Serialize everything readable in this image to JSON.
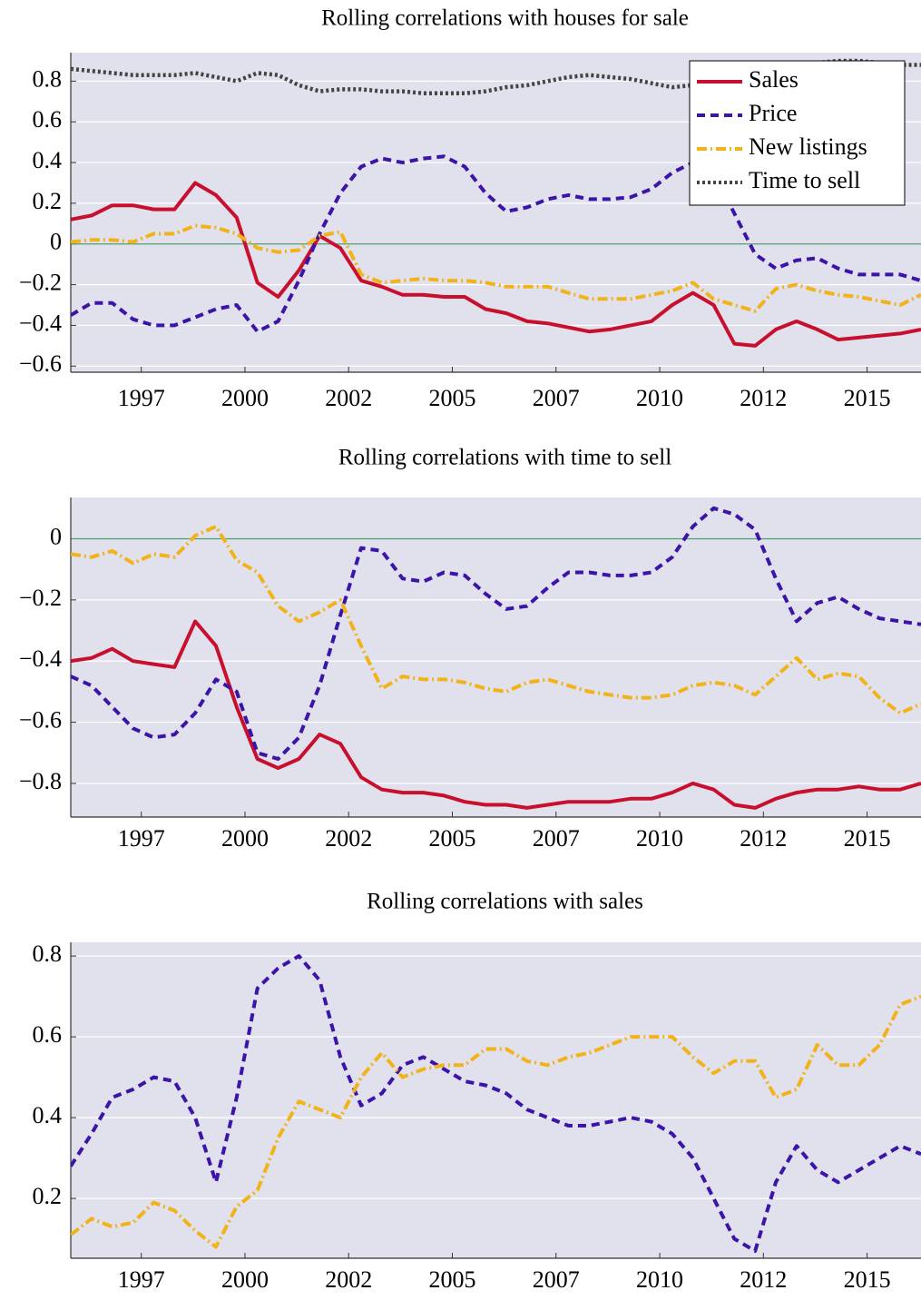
{
  "chart_data": [
    {
      "type": "line",
      "title": "Rolling correlations with houses for sale",
      "legend": "upper right",
      "grid": "y",
      "zero_line": true,
      "x": [
        1995.8,
        1996.3,
        1996.8,
        1997.3,
        1997.8,
        1998.3,
        1998.8,
        1999.3,
        1999.8,
        2000.3,
        2000.8,
        2001.3,
        2001.8,
        2002.3,
        2002.8,
        2003.3,
        2003.8,
        2004.3,
        2004.8,
        2005.3,
        2005.8,
        2006.3,
        2006.8,
        2007.3,
        2007.8,
        2008.3,
        2008.8,
        2009.3,
        2009.8,
        2010.3,
        2010.8,
        2011.3,
        2011.8,
        2012.3,
        2012.8,
        2013.3,
        2013.8,
        2014.3,
        2014.8,
        2015.3,
        2015.8,
        2016.3
      ],
      "xlim": [
        1995.8,
        2016.3
      ],
      "xticks": [
        {
          "value": 1997.5,
          "label": "1997"
        },
        {
          "value": 2000,
          "label": "2000"
        },
        {
          "value": 2002.5,
          "label": "2002"
        },
        {
          "value": 2005,
          "label": "2005"
        },
        {
          "value": 2007.5,
          "label": "2007"
        },
        {
          "value": 2010,
          "label": "2010"
        },
        {
          "value": 2012.5,
          "label": "2012"
        },
        {
          "value": 2015,
          "label": "2015"
        }
      ],
      "ylim": [
        -0.63,
        0.94
      ],
      "yticks": [
        {
          "value": -0.6,
          "label": "−0.6"
        },
        {
          "value": -0.4,
          "label": "−0.4"
        },
        {
          "value": -0.2,
          "label": "−0.2"
        },
        0,
        0.2,
        0.4,
        0.6,
        0.8
      ],
      "series": [
        {
          "name": "Sales",
          "color": "#c8102e",
          "style": "solid",
          "values": [
            0.12,
            0.14,
            0.19,
            0.19,
            0.17,
            0.17,
            0.3,
            0.24,
            0.13,
            -0.19,
            -0.26,
            -0.13,
            0.04,
            -0.02,
            -0.18,
            -0.21,
            -0.25,
            -0.25,
            -0.26,
            -0.26,
            -0.32,
            -0.34,
            -0.38,
            -0.39,
            -0.41,
            -0.43,
            -0.42,
            -0.4,
            -0.38,
            -0.3,
            -0.24,
            -0.3,
            -0.49,
            -0.5,
            -0.42,
            -0.38,
            -0.42,
            -0.47,
            -0.46,
            -0.45,
            -0.44,
            -0.42
          ]
        },
        {
          "name": "Price",
          "color": "#3d14a8",
          "style": "dashed",
          "values": [
            -0.35,
            -0.29,
            -0.29,
            -0.37,
            -0.4,
            -0.4,
            -0.36,
            -0.32,
            -0.3,
            -0.43,
            -0.38,
            -0.18,
            0.05,
            0.25,
            0.38,
            0.42,
            0.4,
            0.42,
            0.43,
            0.38,
            0.25,
            0.16,
            0.18,
            0.22,
            0.24,
            0.22,
            0.22,
            0.23,
            0.27,
            0.35,
            0.4,
            0.35,
            0.15,
            -0.05,
            -0.12,
            -0.08,
            -0.07,
            -0.12,
            -0.15,
            -0.15,
            -0.15,
            -0.18
          ]
        },
        {
          "name": "New listings",
          "color": "#f2b21a",
          "style": "dashdot",
          "values": [
            0.01,
            0.02,
            0.02,
            0.01,
            0.05,
            0.05,
            0.09,
            0.08,
            0.05,
            -0.02,
            -0.04,
            -0.03,
            0.04,
            0.06,
            -0.15,
            -0.19,
            -0.18,
            -0.17,
            -0.18,
            -0.18,
            -0.19,
            -0.21,
            -0.21,
            -0.21,
            -0.24,
            -0.27,
            -0.27,
            -0.27,
            -0.25,
            -0.23,
            -0.19,
            -0.27,
            -0.3,
            -0.33,
            -0.22,
            -0.2,
            -0.23,
            -0.25,
            -0.26,
            -0.28,
            -0.3,
            -0.25
          ]
        },
        {
          "name": "Time to sell",
          "color": "#444444",
          "style": "dotted",
          "values": [
            0.86,
            0.85,
            0.84,
            0.83,
            0.83,
            0.83,
            0.84,
            0.82,
            0.8,
            0.84,
            0.83,
            0.78,
            0.75,
            0.76,
            0.76,
            0.75,
            0.75,
            0.74,
            0.74,
            0.74,
            0.75,
            0.77,
            0.78,
            0.8,
            0.82,
            0.83,
            0.82,
            0.81,
            0.79,
            0.77,
            0.78,
            0.8,
            0.82,
            0.84,
            0.86,
            0.88,
            0.89,
            0.9,
            0.9,
            0.89,
            0.88,
            0.88
          ]
        }
      ]
    },
    {
      "type": "line",
      "title": "Rolling correlations with time to sell",
      "grid": "y",
      "zero_line": true,
      "x": [
        1995.8,
        1996.3,
        1996.8,
        1997.3,
        1997.8,
        1998.3,
        1998.8,
        1999.3,
        1999.8,
        2000.3,
        2000.8,
        2001.3,
        2001.8,
        2002.3,
        2002.8,
        2003.3,
        2003.8,
        2004.3,
        2004.8,
        2005.3,
        2005.8,
        2006.3,
        2006.8,
        2007.3,
        2007.8,
        2008.3,
        2008.8,
        2009.3,
        2009.8,
        2010.3,
        2010.8,
        2011.3,
        2011.8,
        2012.3,
        2012.8,
        2013.3,
        2013.8,
        2014.3,
        2014.8,
        2015.3,
        2015.8,
        2016.3
      ],
      "xlim": [
        1995.8,
        2016.3
      ],
      "xticks": [
        {
          "value": 1997.5,
          "label": "1997"
        },
        {
          "value": 2000,
          "label": "2000"
        },
        {
          "value": 2002.5,
          "label": "2002"
        },
        {
          "value": 2005,
          "label": "2005"
        },
        {
          "value": 2007.5,
          "label": "2007"
        },
        {
          "value": 2010,
          "label": "2010"
        },
        {
          "value": 2012.5,
          "label": "2012"
        },
        {
          "value": 2015,
          "label": "2015"
        }
      ],
      "ylim": [
        -0.91,
        0.135
      ],
      "yticks": [
        {
          "value": -0.8,
          "label": "−0.8"
        },
        {
          "value": -0.6,
          "label": "−0.6"
        },
        {
          "value": -0.4,
          "label": "−0.4"
        },
        {
          "value": -0.2,
          "label": "−0.2"
        },
        0
      ],
      "series": [
        {
          "color": "#c8102e",
          "style": "solid",
          "values": [
            -0.4,
            -0.39,
            -0.36,
            -0.4,
            -0.41,
            -0.42,
            -0.27,
            -0.35,
            -0.55,
            -0.72,
            -0.75,
            -0.72,
            -0.64,
            -0.67,
            -0.78,
            -0.82,
            -0.83,
            -0.83,
            -0.84,
            -0.86,
            -0.87,
            -0.87,
            -0.88,
            -0.87,
            -0.86,
            -0.86,
            -0.86,
            -0.85,
            -0.85,
            -0.83,
            -0.8,
            -0.82,
            -0.87,
            -0.88,
            -0.85,
            -0.83,
            -0.82,
            -0.82,
            -0.81,
            -0.82,
            -0.82,
            -0.8
          ]
        },
        {
          "color": "#3d14a8",
          "style": "dashed",
          "values": [
            -0.45,
            -0.48,
            -0.55,
            -0.62,
            -0.65,
            -0.64,
            -0.57,
            -0.46,
            -0.5,
            -0.7,
            -0.72,
            -0.65,
            -0.48,
            -0.25,
            -0.03,
            -0.04,
            -0.13,
            -0.14,
            -0.11,
            -0.12,
            -0.18,
            -0.23,
            -0.22,
            -0.16,
            -0.11,
            -0.11,
            -0.12,
            -0.12,
            -0.11,
            -0.06,
            0.04,
            0.1,
            0.08,
            0.03,
            -0.13,
            -0.27,
            -0.21,
            -0.19,
            -0.23,
            -0.26,
            -0.27,
            -0.28
          ]
        },
        {
          "color": "#f2b21a",
          "style": "dashdot",
          "values": [
            -0.05,
            -0.06,
            -0.04,
            -0.08,
            -0.05,
            -0.06,
            0.01,
            0.04,
            -0.07,
            -0.11,
            -0.22,
            -0.27,
            -0.24,
            -0.2,
            -0.35,
            -0.49,
            -0.45,
            -0.46,
            -0.46,
            -0.47,
            -0.49,
            -0.5,
            -0.47,
            -0.46,
            -0.48,
            -0.5,
            -0.51,
            -0.52,
            -0.52,
            -0.51,
            -0.48,
            -0.47,
            -0.48,
            -0.51,
            -0.45,
            -0.39,
            -0.46,
            -0.44,
            -0.45,
            -0.52,
            -0.57,
            -0.54
          ]
        }
      ]
    },
    {
      "type": "line",
      "title": "Rolling correlations with sales",
      "grid": "y",
      "x": [
        1995.8,
        1996.3,
        1996.8,
        1997.3,
        1997.8,
        1998.3,
        1998.8,
        1999.3,
        1999.8,
        2000.3,
        2000.8,
        2001.3,
        2001.8,
        2002.3,
        2002.8,
        2003.3,
        2003.8,
        2004.3,
        2004.8,
        2005.3,
        2005.8,
        2006.3,
        2006.8,
        2007.3,
        2007.8,
        2008.3,
        2008.8,
        2009.3,
        2009.8,
        2010.3,
        2010.8,
        2011.3,
        2011.8,
        2012.3,
        2012.8,
        2013.3,
        2013.8,
        2014.3,
        2014.8,
        2015.3,
        2015.8,
        2016.3
      ],
      "xlim": [
        1995.8,
        2016.3
      ],
      "xticks": [
        {
          "value": 1997.5,
          "label": "1997"
        },
        {
          "value": 2000,
          "label": "2000"
        },
        {
          "value": 2002.5,
          "label": "2002"
        },
        {
          "value": 2005,
          "label": "2005"
        },
        {
          "value": 2007.5,
          "label": "2007"
        },
        {
          "value": 2010,
          "label": "2010"
        },
        {
          "value": 2012.5,
          "label": "2012"
        },
        {
          "value": 2015,
          "label": "2015"
        }
      ],
      "ylim": [
        0.052,
        0.834
      ],
      "yticks": [
        0.2,
        0.4,
        0.6,
        0.8
      ],
      "series": [
        {
          "color": "#3d14a8",
          "style": "dashed",
          "values": [
            0.28,
            0.36,
            0.45,
            0.47,
            0.5,
            0.49,
            0.4,
            0.24,
            0.45,
            0.72,
            0.77,
            0.8,
            0.74,
            0.55,
            0.43,
            0.46,
            0.53,
            0.55,
            0.52,
            0.49,
            0.48,
            0.46,
            0.42,
            0.4,
            0.38,
            0.38,
            0.39,
            0.4,
            0.39,
            0.36,
            0.3,
            0.2,
            0.1,
            0.07,
            0.24,
            0.33,
            0.27,
            0.24,
            0.27,
            0.3,
            0.33,
            0.31
          ]
        },
        {
          "color": "#f2b21a",
          "style": "dashdot",
          "values": [
            0.11,
            0.15,
            0.13,
            0.14,
            0.19,
            0.17,
            0.12,
            0.08,
            0.18,
            0.22,
            0.35,
            0.44,
            0.42,
            0.4,
            0.5,
            0.56,
            0.5,
            0.52,
            0.53,
            0.53,
            0.57,
            0.57,
            0.54,
            0.53,
            0.55,
            0.56,
            0.58,
            0.6,
            0.6,
            0.6,
            0.55,
            0.51,
            0.54,
            0.54,
            0.45,
            0.47,
            0.58,
            0.53,
            0.53,
            0.58,
            0.68,
            0.7
          ]
        }
      ]
    }
  ]
}
